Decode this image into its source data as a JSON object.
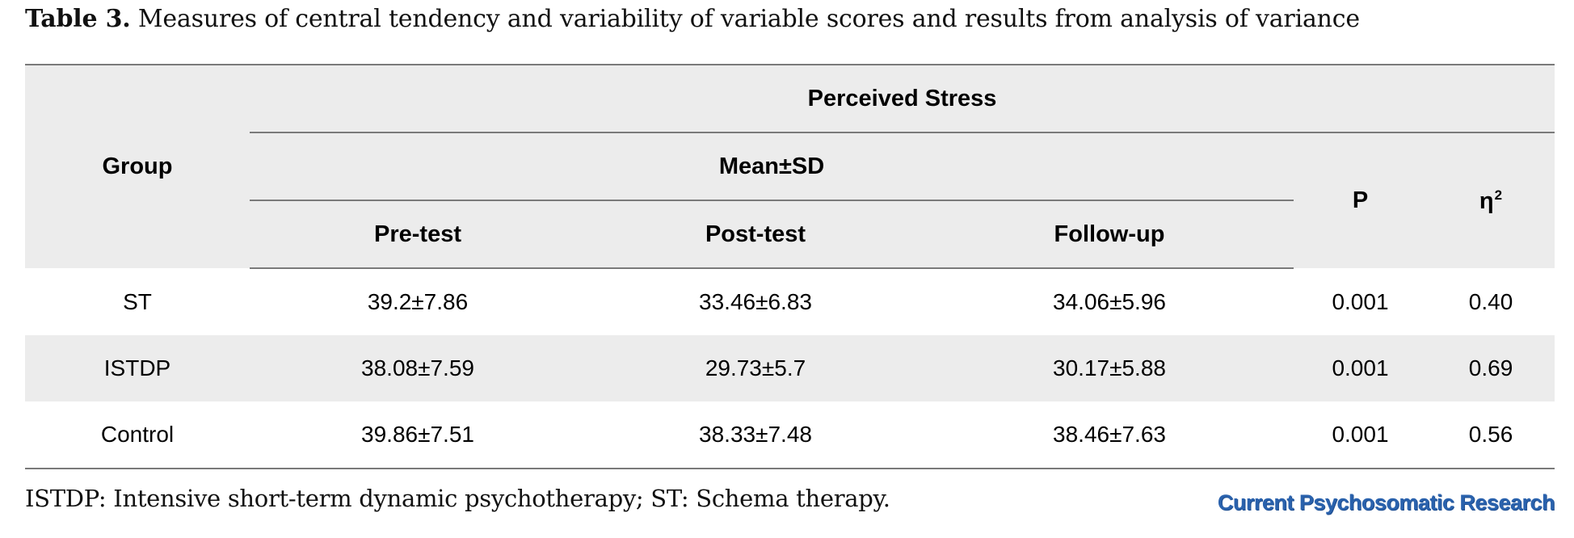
{
  "caption": {
    "label": "Table 3.",
    "text": "Measures of central tendency and variability of variable scores and results from analysis of variance"
  },
  "table": {
    "header": {
      "group": "Group",
      "variable": "Perceived Stress",
      "stat": "Mean±SD",
      "columns": [
        "Pre-test",
        "Post-test",
        "Follow-up"
      ],
      "p": "P",
      "eta": "η",
      "eta_sup": "2"
    },
    "rows": [
      {
        "group": "ST",
        "pre": "39.2±7.86",
        "post": "33.46±6.83",
        "follow": "34.06±5.96",
        "p": "0.001",
        "eta": "0.40"
      },
      {
        "group": "ISTDP",
        "pre": "38.08±7.59",
        "post": "29.73±5.7",
        "follow": "30.17±5.88",
        "p": "0.001",
        "eta": "0.69"
      },
      {
        "group": "Control",
        "pre": "39.86±7.51",
        "post": "38.33±7.48",
        "follow": "38.46±7.63",
        "p": "0.001",
        "eta": "0.56"
      }
    ]
  },
  "footnote": "ISTDP: Intensive short-term dynamic psychotherapy; ST: Schema therapy.",
  "journal": "Current Psychosomatic Research"
}
